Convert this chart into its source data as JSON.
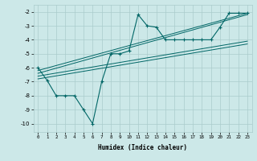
{
  "xlabel": "Humidex (Indice chaleur)",
  "bg_color": "#cce8e8",
  "grid_color": "#aacccc",
  "line_color": "#006666",
  "xlim": [
    -0.5,
    23.5
  ],
  "ylim": [
    -10.6,
    -1.5
  ],
  "yticks": [
    -10,
    -9,
    -8,
    -7,
    -6,
    -5,
    -4,
    -3,
    -2
  ],
  "xticks": [
    0,
    1,
    2,
    3,
    4,
    5,
    6,
    7,
    8,
    9,
    10,
    11,
    12,
    13,
    14,
    15,
    16,
    17,
    18,
    19,
    20,
    21,
    22,
    23
  ],
  "line1_x": [
    0,
    1,
    2,
    3,
    4,
    5,
    6,
    7,
    8,
    9,
    10,
    11,
    12,
    13,
    14,
    15,
    16,
    17,
    18,
    19,
    20,
    21,
    22,
    23
  ],
  "line1_y": [
    -6.0,
    -6.9,
    -8.0,
    -8.0,
    -8.0,
    -9.0,
    -10.0,
    -7.0,
    -5.0,
    -5.0,
    -4.8,
    -2.2,
    -3.0,
    -3.1,
    -4.0,
    -4.0,
    -4.0,
    -4.0,
    -4.0,
    -4.0,
    -3.1,
    -2.1,
    -2.1,
    -2.1
  ],
  "line2_x": [
    0,
    23
  ],
  "line2_y": [
    -6.2,
    -2.1
  ],
  "line3_x": [
    0,
    23
  ],
  "line3_y": [
    -6.4,
    -2.2
  ],
  "line4_x": [
    0,
    23
  ],
  "line4_y": [
    -6.6,
    -4.1
  ],
  "line5_x": [
    0,
    23
  ],
  "line5_y": [
    -6.8,
    -4.3
  ]
}
